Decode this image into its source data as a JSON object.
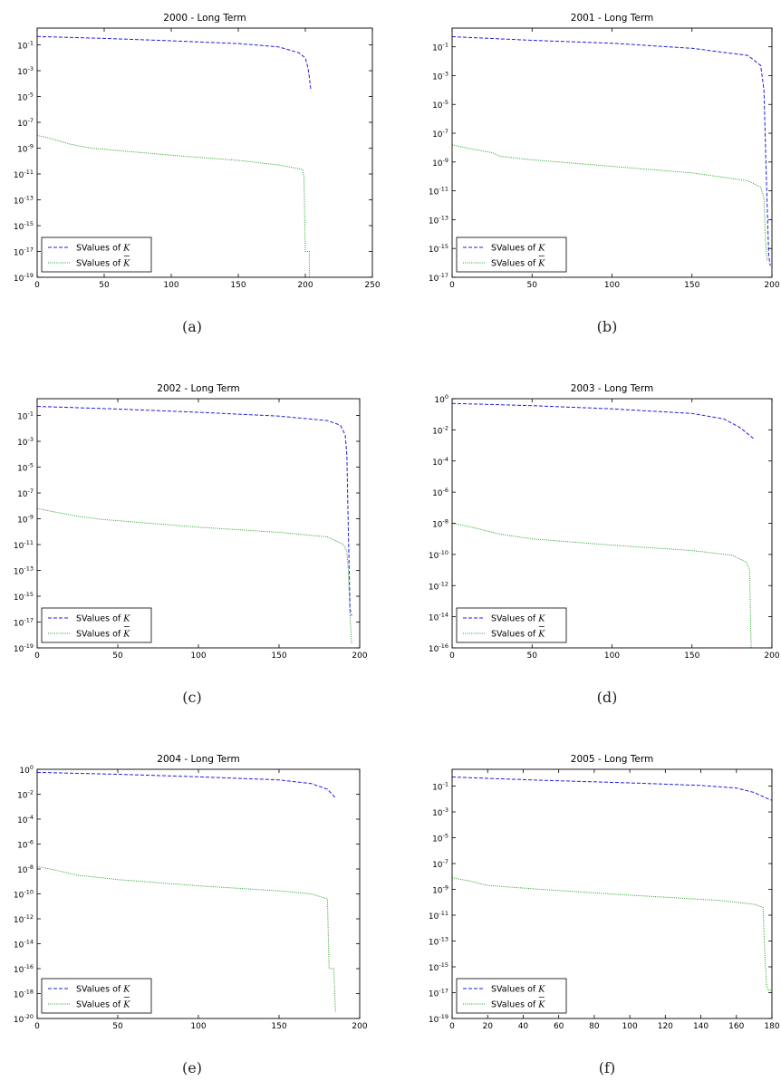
{
  "chart_data": [
    {
      "type": "line",
      "title": "2000 - Long Term",
      "caption": "(a)",
      "x_ticks": [
        0,
        50,
        100,
        150,
        200,
        250
      ],
      "y_exp_ticks": [
        -1,
        -3,
        -5,
        -7,
        -9,
        -11,
        -13,
        -15,
        -17,
        -19
      ],
      "xlim": [
        0,
        250
      ],
      "ylim_exp": [
        0.3,
        -19
      ],
      "yscale": "log",
      "legend": "lower-left",
      "series": [
        {
          "name": "SValues of K",
          "math": "K",
          "bar": false,
          "style": "dashed",
          "color": "#1f1fe0",
          "points": [
            [
              0,
              -0.35
            ],
            [
              50,
              -0.5
            ],
            [
              100,
              -0.68
            ],
            [
              150,
              -0.9
            ],
            [
              180,
              -1.15
            ],
            [
              195,
              -1.6
            ],
            [
              200,
              -2.0
            ],
            [
              202,
              -2.8
            ],
            [
              203,
              -3.5
            ],
            [
              204,
              -4.4
            ]
          ]
        },
        {
          "name": "SValues of K",
          "math": "K",
          "bar": true,
          "style": "dotted",
          "color": "#23a123",
          "points": [
            [
              0,
              -8.0
            ],
            [
              10,
              -8.25
            ],
            [
              25,
              -8.7
            ],
            [
              40,
              -9.0
            ],
            [
              100,
              -9.55
            ],
            [
              150,
              -9.95
            ],
            [
              180,
              -10.3
            ],
            [
              198,
              -10.65
            ],
            [
              199,
              -11.2
            ],
            [
              200,
              -17.0
            ],
            [
              203,
              -17.0
            ],
            [
              203,
              -19.0
            ]
          ]
        }
      ]
    },
    {
      "type": "line",
      "title": "2001 - Long Term",
      "caption": "(b)",
      "x_ticks": [
        0,
        50,
        100,
        150,
        200
      ],
      "y_exp_ticks": [
        -1,
        -3,
        -5,
        -7,
        -9,
        -11,
        -13,
        -15,
        -17
      ],
      "xlim": [
        0,
        200
      ],
      "ylim_exp": [
        0.3,
        -17
      ],
      "yscale": "log",
      "legend": "lower-left",
      "series": [
        {
          "name": "SValues of K",
          "math": "K",
          "bar": false,
          "style": "dashed",
          "color": "#1f1fe0",
          "points": [
            [
              0,
              -0.3
            ],
            [
              50,
              -0.55
            ],
            [
              100,
              -0.75
            ],
            [
              150,
              -1.1
            ],
            [
              185,
              -1.6
            ],
            [
              193,
              -2.3
            ],
            [
              195,
              -4.0
            ],
            [
              196,
              -8.0
            ],
            [
              197,
              -12.0
            ],
            [
              198,
              -15.5
            ],
            [
              199,
              -16.2
            ]
          ]
        },
        {
          "name": "SValues of K",
          "math": "K",
          "bar": true,
          "style": "dotted",
          "color": "#23a123",
          "points": [
            [
              0,
              -7.8
            ],
            [
              10,
              -8.05
            ],
            [
              25,
              -8.35
            ],
            [
              30,
              -8.6
            ],
            [
              50,
              -8.85
            ],
            [
              100,
              -9.3
            ],
            [
              150,
              -9.75
            ],
            [
              185,
              -10.3
            ],
            [
              193,
              -10.75
            ],
            [
              195,
              -11.5
            ],
            [
              196,
              -14.5
            ],
            [
              197,
              -15.9
            ]
          ]
        }
      ]
    },
    {
      "type": "line",
      "title": "2002 - Long Term",
      "caption": "(c)",
      "x_ticks": [
        0,
        50,
        100,
        150,
        200
      ],
      "y_exp_ticks": [
        -1,
        -3,
        -5,
        -7,
        -9,
        -11,
        -13,
        -15,
        -17,
        -19
      ],
      "xlim": [
        0,
        200
      ],
      "ylim_exp": [
        0.3,
        -19
      ],
      "yscale": "log",
      "legend": "lower-left",
      "series": [
        {
          "name": "SValues of K",
          "math": "K",
          "bar": false,
          "style": "dashed",
          "color": "#1f1fe0",
          "points": [
            [
              0,
              -0.3
            ],
            [
              50,
              -0.5
            ],
            [
              100,
              -0.75
            ],
            [
              150,
              -1.05
            ],
            [
              180,
              -1.4
            ],
            [
              188,
              -1.75
            ],
            [
              191,
              -2.5
            ],
            [
              192,
              -4.0
            ],
            [
              193,
              -10.0
            ],
            [
              194,
              -16.0
            ],
            [
              195,
              -16.5
            ]
          ]
        },
        {
          "name": "SValues of K",
          "math": "K",
          "bar": true,
          "style": "dotted",
          "color": "#23a123",
          "points": [
            [
              0,
              -8.2
            ],
            [
              10,
              -8.45
            ],
            [
              25,
              -8.8
            ],
            [
              40,
              -9.05
            ],
            [
              100,
              -9.65
            ],
            [
              150,
              -10.05
            ],
            [
              180,
              -10.4
            ],
            [
              190,
              -11.0
            ],
            [
              192,
              -11.5
            ],
            [
              193,
              -13.0
            ],
            [
              194,
              -16.5
            ],
            [
              195,
              -18.7
            ]
          ]
        }
      ]
    },
    {
      "type": "line",
      "title": "2003 - Long Term",
      "caption": "(d)",
      "x_ticks": [
        0,
        50,
        100,
        150,
        200
      ],
      "y_exp_ticks": [
        0,
        -2,
        -4,
        -6,
        -8,
        -10,
        -12,
        -14,
        -16
      ],
      "xlim": [
        0,
        200
      ],
      "ylim_exp": [
        0,
        -16
      ],
      "yscale": "log",
      "legend": "lower-left",
      "series": [
        {
          "name": "SValues of K",
          "math": "K",
          "bar": false,
          "style": "dashed",
          "color": "#1f1fe0",
          "points": [
            [
              0,
              -0.3
            ],
            [
              50,
              -0.45
            ],
            [
              100,
              -0.65
            ],
            [
              150,
              -0.95
            ],
            [
              170,
              -1.3
            ],
            [
              180,
              -1.85
            ],
            [
              189,
              -2.6
            ]
          ]
        },
        {
          "name": "SValues of K",
          "math": "K",
          "bar": true,
          "style": "dotted",
          "color": "#23a123",
          "points": [
            [
              0,
              -8.0
            ],
            [
              10,
              -8.2
            ],
            [
              30,
              -8.7
            ],
            [
              50,
              -9.0
            ],
            [
              100,
              -9.4
            ],
            [
              150,
              -9.75
            ],
            [
              175,
              -10.05
            ],
            [
              184,
              -10.5
            ],
            [
              186,
              -11.0
            ],
            [
              187,
              -16.0
            ]
          ]
        }
      ]
    },
    {
      "type": "line",
      "title": "2004 - Long Term",
      "caption": "(e)",
      "x_ticks": [
        0,
        50,
        100,
        150,
        200
      ],
      "y_exp_ticks": [
        0,
        -2,
        -4,
        -6,
        -8,
        -10,
        -12,
        -14,
        -16,
        -18,
        -20
      ],
      "xlim": [
        0,
        200
      ],
      "ylim_exp": [
        0,
        -20
      ],
      "yscale": "log",
      "legend": "lower-left",
      "series": [
        {
          "name": "SValues of K",
          "math": "K",
          "bar": false,
          "style": "dashed",
          "color": "#1f1fe0",
          "points": [
            [
              0,
              -0.25
            ],
            [
              50,
              -0.4
            ],
            [
              100,
              -0.6
            ],
            [
              150,
              -0.85
            ],
            [
              170,
              -1.15
            ],
            [
              180,
              -1.6
            ],
            [
              185,
              -2.3
            ]
          ]
        },
        {
          "name": "SValues of K",
          "math": "K",
          "bar": true,
          "style": "dotted",
          "color": "#23a123",
          "points": [
            [
              0,
              -7.8
            ],
            [
              10,
              -8.05
            ],
            [
              25,
              -8.5
            ],
            [
              50,
              -8.85
            ],
            [
              100,
              -9.35
            ],
            [
              150,
              -9.75
            ],
            [
              170,
              -10.0
            ],
            [
              180,
              -10.4
            ],
            [
              181,
              -16.0
            ],
            [
              184,
              -16.0
            ],
            [
              185,
              -19.5
            ]
          ]
        }
      ]
    },
    {
      "type": "line",
      "title": "2005 - Long Term",
      "caption": "(f)",
      "x_ticks": [
        0,
        20,
        40,
        60,
        80,
        100,
        120,
        140,
        160,
        180
      ],
      "y_exp_ticks": [
        -1,
        -3,
        -5,
        -7,
        -9,
        -11,
        -13,
        -15,
        -17,
        -19
      ],
      "xlim": [
        0,
        180
      ],
      "ylim_exp": [
        0.3,
        -19
      ],
      "yscale": "log",
      "legend": "lower-left",
      "series": [
        {
          "name": "SValues of K",
          "math": "K",
          "bar": false,
          "style": "dashed",
          "color": "#1f1fe0",
          "points": [
            [
              0,
              -0.3
            ],
            [
              20,
              -0.4
            ],
            [
              50,
              -0.55
            ],
            [
              100,
              -0.75
            ],
            [
              140,
              -0.95
            ],
            [
              160,
              -1.15
            ],
            [
              170,
              -1.5
            ],
            [
              178,
              -2.0
            ],
            [
              180,
              -2.1
            ]
          ]
        },
        {
          "name": "SValues of K",
          "math": "K",
          "bar": true,
          "style": "dotted",
          "color": "#23a123",
          "points": [
            [
              0,
              -8.1
            ],
            [
              10,
              -8.35
            ],
            [
              20,
              -8.7
            ],
            [
              50,
              -9.0
            ],
            [
              100,
              -9.45
            ],
            [
              150,
              -9.85
            ],
            [
              170,
              -10.15
            ],
            [
              175,
              -10.4
            ],
            [
              176,
              -14.0
            ],
            [
              177,
              -16.5
            ],
            [
              178,
              -16.8
            ],
            [
              180,
              -16.8
            ]
          ]
        }
      ]
    }
  ]
}
